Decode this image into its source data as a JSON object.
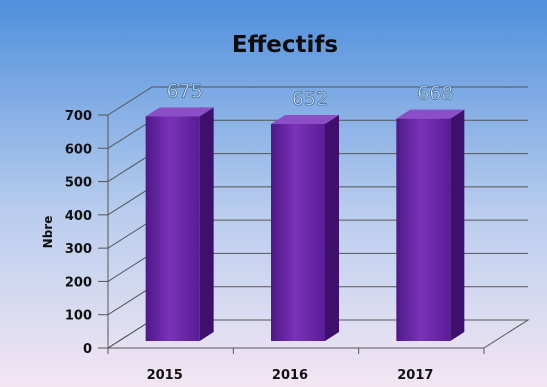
{
  "chart_data": {
    "type": "bar",
    "title": "Effectifs",
    "xlabel": "",
    "ylabel": "Nbre",
    "categories": [
      "2015",
      "2016",
      "2017"
    ],
    "values": [
      675,
      652,
      668
    ],
    "data_labels": [
      "675",
      "652",
      "668"
    ],
    "ylim": [
      0,
      700
    ],
    "yticks": [
      0,
      100,
      200,
      300,
      400,
      500,
      600,
      700
    ],
    "grid": true,
    "legend": "none",
    "three_d": true
  },
  "colors": {
    "background_top": "#4f8fdc",
    "background_bottom": "#f3e6f3",
    "bar_front": "#6a26a8",
    "bar_side": "#3e0f6c",
    "bar_top": "#8c4ec6",
    "gridline": "#555555",
    "data_label_fill": "#d7ebfb",
    "data_label_stroke": "#4a6f9a"
  }
}
